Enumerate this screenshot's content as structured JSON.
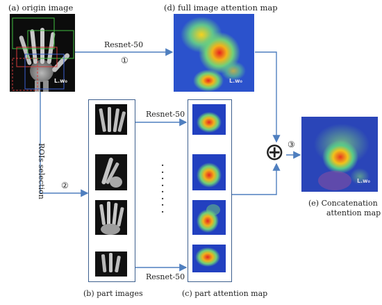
{
  "labels": {
    "a": "(a)   origin image",
    "d": "(d)   full image attention map",
    "b": "(b)   part images",
    "c": "(c)   part attention map",
    "e1": "(e)     Concatenation",
    "e2": "attention map"
  },
  "edges": {
    "resnet_top": "Resnet-50",
    "resnet_mid": "Resnet-50",
    "resnet_bot": "Resnet-50",
    "rois": "ROIs selection",
    "step1": "①",
    "step2": "②",
    "step3": "③",
    "dots": "·\n·\n·\n·\n·\n·\n·\n·",
    "plus": "⊕"
  },
  "watermark": "L.w₀",
  "colors": {
    "arrow": "#4f7fbf",
    "frame": "#3d5f8e",
    "heat_base": "#1d3fbf"
  }
}
